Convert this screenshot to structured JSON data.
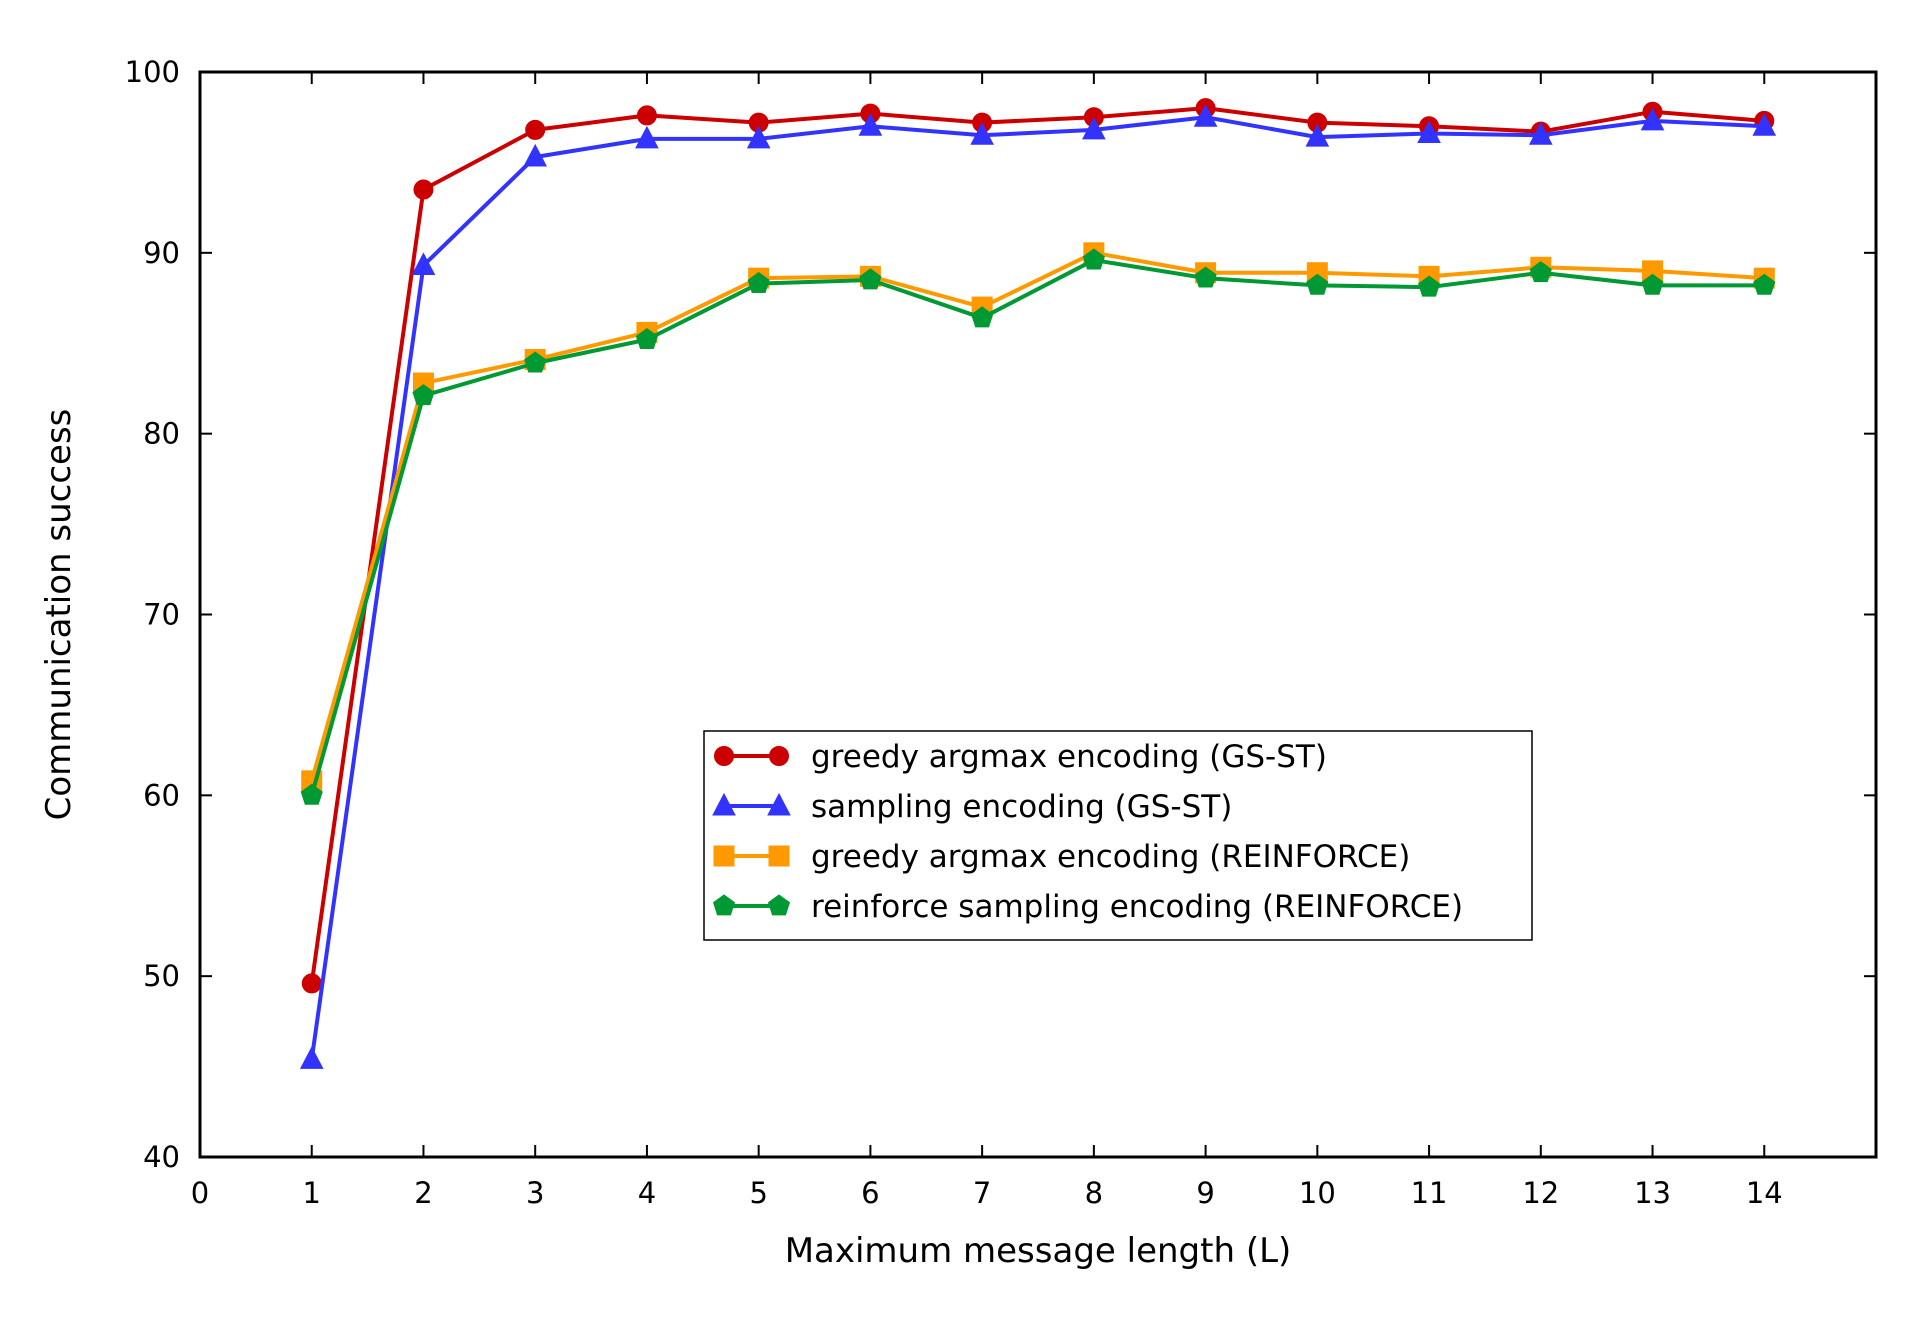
{
  "chart_data": {
    "type": "line",
    "title": "",
    "xlabel": "Maximum message length (L)",
    "ylabel": "Communication success",
    "xlim": [
      0,
      15
    ],
    "ylim": [
      40,
      100
    ],
    "xticks": [
      0,
      1,
      2,
      3,
      4,
      5,
      6,
      7,
      8,
      9,
      10,
      11,
      12,
      13,
      14
    ],
    "yticks": [
      40,
      50,
      60,
      70,
      80,
      90,
      100
    ],
    "grid": false,
    "legend_position": "center-right",
    "x": [
      1,
      2,
      3,
      4,
      5,
      6,
      7,
      8,
      9,
      10,
      11,
      12,
      13,
      14
    ],
    "series": [
      {
        "name": "greedy argmax encoding (GS-ST)",
        "color": "#cc0000",
        "marker": "circle",
        "values": [
          49.6,
          93.5,
          96.8,
          97.6,
          97.2,
          97.7,
          97.2,
          97.5,
          98.0,
          97.2,
          97.0,
          96.7,
          97.8,
          97.3
        ]
      },
      {
        "name": "sampling encoding (GS-ST)",
        "color": "#3333ff",
        "marker": "triangle",
        "values": [
          45.4,
          89.3,
          95.3,
          96.3,
          96.3,
          97.0,
          96.5,
          96.8,
          97.5,
          96.4,
          96.6,
          96.5,
          97.3,
          97.0
        ]
      },
      {
        "name": "greedy argmax encoding (REINFORCE)",
        "color": "#ff9900",
        "marker": "square",
        "values": [
          60.8,
          82.8,
          84.1,
          85.6,
          88.6,
          88.7,
          87.0,
          90.0,
          88.9,
          88.9,
          88.7,
          89.2,
          89.0,
          88.6
        ]
      },
      {
        "name": "reinforce sampling encoding (REINFORCE)",
        "color": "#009933",
        "marker": "pentagon",
        "values": [
          60.0,
          82.1,
          83.9,
          85.2,
          88.3,
          88.5,
          86.4,
          89.6,
          88.6,
          88.2,
          88.1,
          88.9,
          88.2,
          88.2
        ]
      }
    ]
  }
}
